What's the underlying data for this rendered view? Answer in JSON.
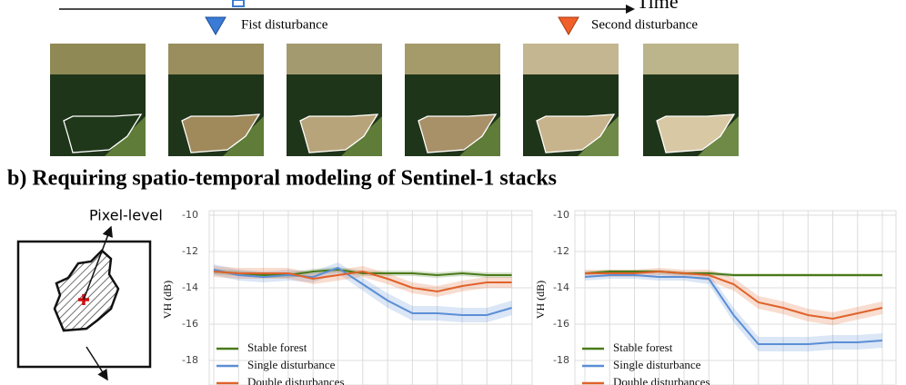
{
  "figure": {
    "time_label": "Time",
    "events": [
      "Fist disturbance",
      "Second disturbance"
    ],
    "title": "b) Requiring spatio-temporal modeling of Sentinel-1 stacks",
    "pixel_label": "Pixel-level"
  },
  "chart_data": [
    {
      "type": "line",
      "y_label": "VH (dB)",
      "categories": [
        null,
        null,
        null,
        null,
        null,
        null,
        null,
        null,
        null,
        null,
        null,
        null,
        null
      ],
      "ylim": [
        -19,
        -10
      ],
      "yticks": [
        -10,
        -12,
        -14,
        -16,
        -18
      ],
      "grid": true,
      "legend": "lower left",
      "series": [
        {
          "name": "Stable forest",
          "color": "#4a7a1a",
          "values": [
            -13.1,
            -13.2,
            -13.3,
            -13.3,
            -13.1,
            -13.0,
            -13.2,
            -13.2,
            -13.2,
            -13.3,
            -13.2,
            -13.3,
            -13.3
          ],
          "error": [
            0.15,
            0.15,
            0.15,
            0.15,
            0.15,
            0.15,
            0.15,
            0.15,
            0.15,
            0.15,
            0.15,
            0.15,
            0.15
          ]
        },
        {
          "name": "Single disturbance",
          "color": "#5b8fd6",
          "values": [
            -13.0,
            -13.3,
            -13.4,
            -13.3,
            -13.4,
            -12.9,
            -13.8,
            -14.7,
            -15.4,
            -15.4,
            -15.5,
            -15.5,
            -15.1
          ],
          "error": [
            0.3,
            0.3,
            0.3,
            0.3,
            0.3,
            0.3,
            0.35,
            0.4,
            0.4,
            0.4,
            0.4,
            0.4,
            0.4
          ]
        },
        {
          "name": "Double disturbances",
          "color": "#e0622b",
          "values": [
            -13.1,
            -13.2,
            -13.2,
            -13.2,
            -13.5,
            -13.3,
            -13.1,
            -13.5,
            -14.0,
            -14.2,
            -13.9,
            -13.7,
            -13.7
          ],
          "error": [
            0.3,
            0.3,
            0.3,
            0.3,
            0.3,
            0.3,
            0.3,
            0.3,
            0.3,
            0.3,
            0.3,
            0.3,
            0.3
          ]
        }
      ]
    },
    {
      "type": "line",
      "y_label": "VH (dB)",
      "categories": [
        null,
        null,
        null,
        null,
        null,
        null,
        null,
        null,
        null,
        null,
        null,
        null,
        null
      ],
      "ylim": [
        -19,
        -10
      ],
      "yticks": [
        -10,
        -12,
        -14,
        -16,
        -18
      ],
      "grid": true,
      "legend": "lower left",
      "series": [
        {
          "name": "Stable forest",
          "color": "#4a7a1a",
          "values": [
            -13.2,
            -13.1,
            -13.1,
            -13.1,
            -13.2,
            -13.2,
            -13.3,
            -13.3,
            -13.3,
            -13.3,
            -13.3,
            -13.3,
            -13.3
          ],
          "error": [
            0.1,
            0.1,
            0.1,
            0.1,
            0.1,
            0.1,
            0.1,
            0.1,
            0.1,
            0.1,
            0.1,
            0.1,
            0.1
          ]
        },
        {
          "name": "Single disturbance",
          "color": "#5b8fd6",
          "values": [
            -13.4,
            -13.3,
            -13.3,
            -13.4,
            -13.4,
            -13.5,
            -15.5,
            -17.1,
            -17.1,
            -17.1,
            -17.0,
            -17.0,
            -16.9
          ],
          "error": [
            0.2,
            0.2,
            0.2,
            0.2,
            0.2,
            0.3,
            0.4,
            0.4,
            0.4,
            0.4,
            0.4,
            0.4,
            0.4
          ]
        },
        {
          "name": "Double disturbances",
          "color": "#e0622b",
          "values": [
            -13.2,
            -13.2,
            -13.2,
            -13.1,
            -13.2,
            -13.3,
            -13.8,
            -14.8,
            -15.1,
            -15.5,
            -15.7,
            -15.4,
            -15.1
          ],
          "error": [
            0.2,
            0.2,
            0.2,
            0.2,
            0.2,
            0.3,
            0.35,
            0.35,
            0.35,
            0.35,
            0.35,
            0.35,
            0.35
          ]
        }
      ]
    }
  ]
}
